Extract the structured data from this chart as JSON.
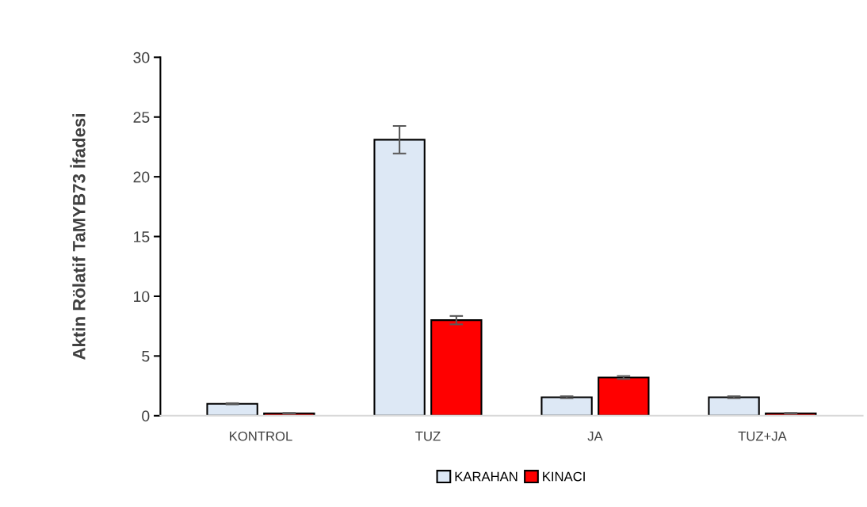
{
  "chart_data": {
    "type": "bar",
    "ylabel": "Aktin Rölatif TaMYB73 İfadesi",
    "categories": [
      "KONTROL",
      "TUZ",
      "JA",
      "TUZ+JA"
    ],
    "series": [
      {
        "name": "KARAHAN",
        "color": "#dde8f5",
        "values": [
          1.0,
          23.1,
          1.55,
          1.55
        ],
        "errors": [
          0.05,
          1.15,
          0.08,
          0.08
        ]
      },
      {
        "name": "KINACI",
        "color": "#ff0000",
        "values": [
          0.2,
          8.0,
          3.2,
          0.2
        ],
        "errors": [
          0.03,
          0.35,
          0.12,
          0.03
        ]
      }
    ],
    "ylim": [
      0,
      30
    ],
    "yticks": [
      0,
      5,
      10,
      15,
      20,
      25,
      30
    ],
    "grid": false,
    "legend": "bottom"
  }
}
